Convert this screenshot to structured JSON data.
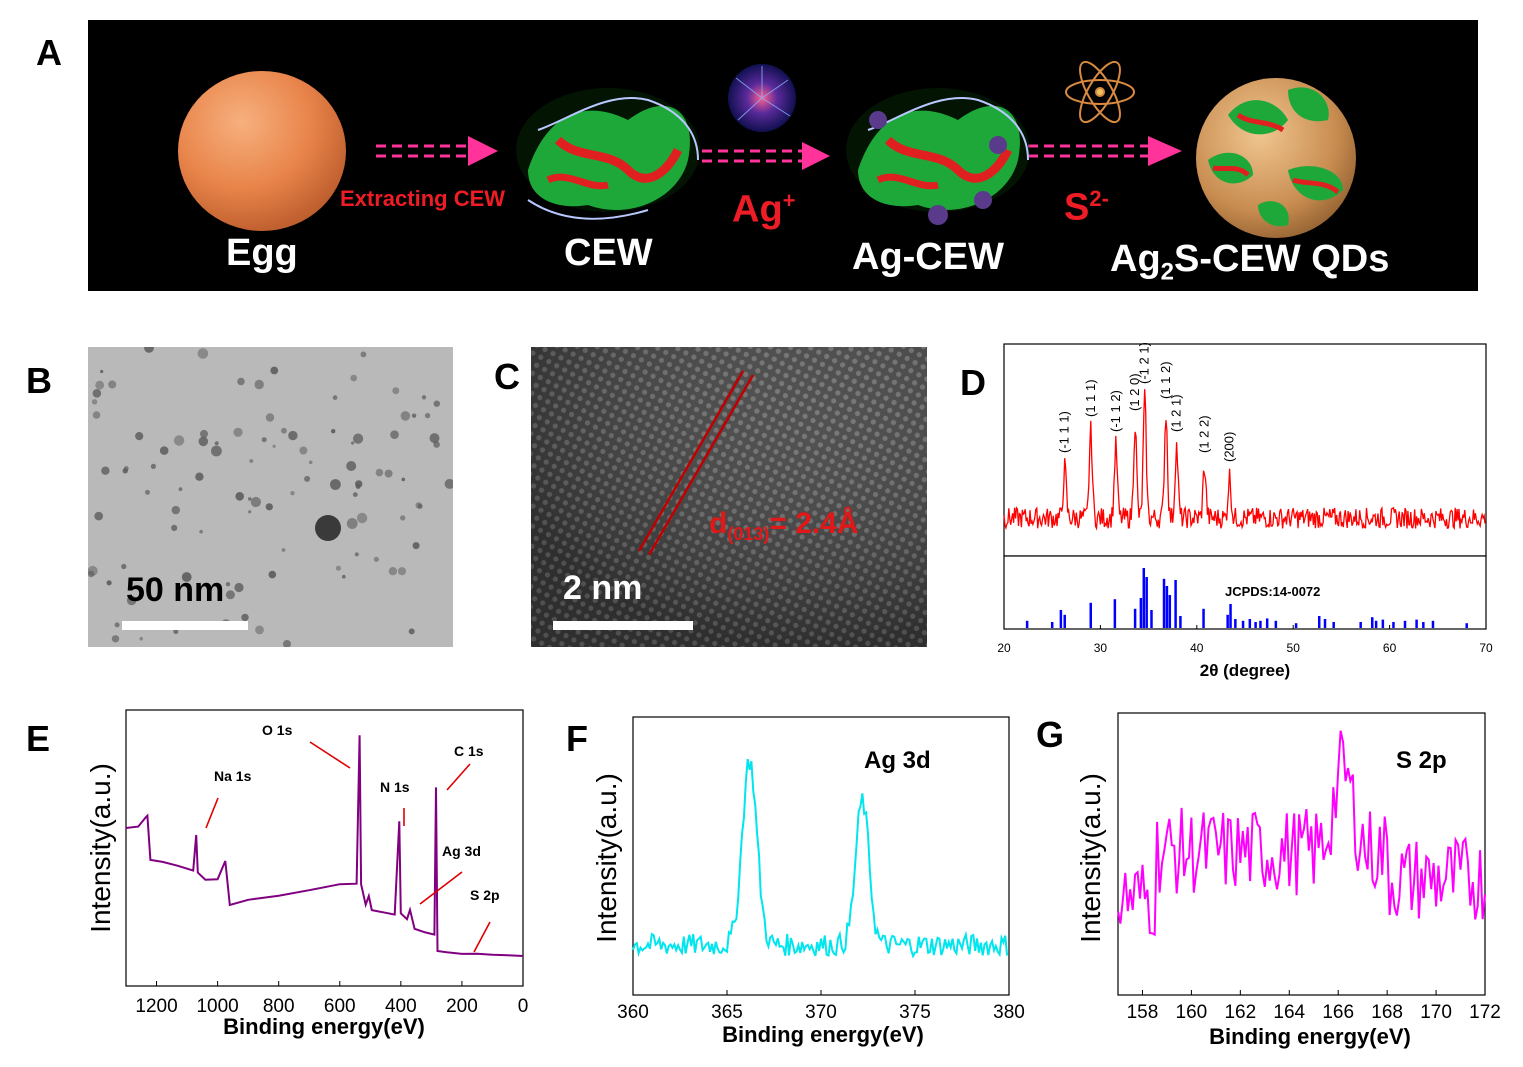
{
  "panel_labels": {
    "a": "A",
    "b": "B",
    "c": "C",
    "d": "D",
    "e": "E",
    "f": "F",
    "g": "G"
  },
  "schematic": {
    "egg": "Egg",
    "extracting": "Extracting CEW",
    "cew": "CEW",
    "ag_ion": "Ag",
    "ag_ion_sup": "+",
    "ag_cew": "Ag-CEW",
    "s_ion": "S",
    "s_ion_sup": "2-",
    "qd_a": "Ag",
    "qd_sub": "2",
    "qd_b": "S-CEW QDs",
    "colors": {
      "background": "#000000",
      "arrow": "#ff3399",
      "label_red": "#ee1c25",
      "egg": "#e8844a"
    }
  },
  "tem": {
    "scale_label": "50 nm"
  },
  "hrtem": {
    "scale_label": "2 nm",
    "d_main": "d",
    "d_sub": "(013)",
    "d_value": "= 2.4Å"
  },
  "chart_data": [
    {
      "panel": "D",
      "type": "line",
      "xlabel": "2θ (degree)",
      "xlim": [
        20,
        70
      ],
      "xticks": [
        20,
        30,
        40,
        50,
        60,
        70
      ],
      "color": "#ff0000",
      "peaks": [
        {
          "x": 26.3,
          "label": "(-1 1 1)",
          "height": 0.34
        },
        {
          "x": 29.0,
          "label": "(1 1 1)",
          "height": 0.58
        },
        {
          "x": 31.6,
          "label": "(-1 1 2)",
          "height": 0.48
        },
        {
          "x": 33.6,
          "label": "(1 2 0)",
          "height": 0.62
        },
        {
          "x": 34.6,
          "label": "(-1 2 1)",
          "height": 0.8
        },
        {
          "x": 36.8,
          "label": "(1 1 2)",
          "height": 0.7
        },
        {
          "x": 37.9,
          "label": "(1 2 1)",
          "height": 0.48
        },
        {
          "x": 40.8,
          "label": "(1 2 2)",
          "height": 0.34
        },
        {
          "x": 43.4,
          "label": "(200)",
          "height": 0.28
        }
      ],
      "reference": {
        "label": "JCPDS:14-0072",
        "color": "#0000ff",
        "lines": [
          {
            "x": 22.4,
            "h": 0.12
          },
          {
            "x": 25.0,
            "h": 0.1
          },
          {
            "x": 25.9,
            "h": 0.3
          },
          {
            "x": 26.3,
            "h": 0.22
          },
          {
            "x": 29.0,
            "h": 0.42
          },
          {
            "x": 31.5,
            "h": 0.48
          },
          {
            "x": 33.6,
            "h": 0.32
          },
          {
            "x": 34.2,
            "h": 0.5
          },
          {
            "x": 34.5,
            "h": 1.0
          },
          {
            "x": 34.8,
            "h": 0.85
          },
          {
            "x": 35.3,
            "h": 0.3
          },
          {
            "x": 36.6,
            "h": 0.82
          },
          {
            "x": 36.9,
            "h": 0.7
          },
          {
            "x": 37.2,
            "h": 0.55
          },
          {
            "x": 37.8,
            "h": 0.8
          },
          {
            "x": 38.3,
            "h": 0.2
          },
          {
            "x": 40.7,
            "h": 0.32
          },
          {
            "x": 43.2,
            "h": 0.22
          },
          {
            "x": 43.5,
            "h": 0.4
          },
          {
            "x": 44.0,
            "h": 0.15
          },
          {
            "x": 44.8,
            "h": 0.12
          },
          {
            "x": 45.5,
            "h": 0.15
          },
          {
            "x": 46.1,
            "h": 0.1
          },
          {
            "x": 46.6,
            "h": 0.12
          },
          {
            "x": 47.3,
            "h": 0.16
          },
          {
            "x": 48.2,
            "h": 0.12
          },
          {
            "x": 50.3,
            "h": 0.08
          },
          {
            "x": 52.7,
            "h": 0.2
          },
          {
            "x": 53.3,
            "h": 0.15
          },
          {
            "x": 54.2,
            "h": 0.1
          },
          {
            "x": 57.0,
            "h": 0.1
          },
          {
            "x": 58.2,
            "h": 0.18
          },
          {
            "x": 58.6,
            "h": 0.12
          },
          {
            "x": 59.3,
            "h": 0.14
          },
          {
            "x": 60.4,
            "h": 0.1
          },
          {
            "x": 61.6,
            "h": 0.12
          },
          {
            "x": 62.8,
            "h": 0.14
          },
          {
            "x": 63.5,
            "h": 0.1
          },
          {
            "x": 64.5,
            "h": 0.12
          },
          {
            "x": 68.0,
            "h": 0.08
          }
        ]
      }
    },
    {
      "panel": "E",
      "type": "line",
      "xlabel": "Binding energy(eV)",
      "ylabel": "Intensity(a.u.)",
      "xlim": [
        1300,
        0
      ],
      "xticks": [
        1200,
        1000,
        800,
        600,
        400,
        200,
        0
      ],
      "color": "#800080",
      "annotations": [
        "Na 1s",
        "O 1s",
        "N 1s",
        "C 1s",
        "Ag 3d",
        "S 2p"
      ]
    },
    {
      "panel": "F",
      "type": "line",
      "title": "Ag 3d",
      "xlabel": "Binding energy(eV)",
      "ylabel": "Intensity(a.u.)",
      "xlim": [
        360,
        380
      ],
      "xticks": [
        360,
        365,
        370,
        375,
        380
      ],
      "color": "#00e5ee",
      "peaks": [
        {
          "x": 366.2
        },
        {
          "x": 372.2
        }
      ]
    },
    {
      "panel": "G",
      "type": "line",
      "title": "S 2p",
      "xlabel": "Binding energy(eV)",
      "ylabel": "Intensity(a.u.)",
      "xlim": [
        157,
        172
      ],
      "xticks": [
        158,
        160,
        162,
        164,
        166,
        168,
        170,
        172
      ],
      "color": "#ff00ff",
      "peaks": [
        {
          "x": 166.2
        }
      ]
    }
  ]
}
